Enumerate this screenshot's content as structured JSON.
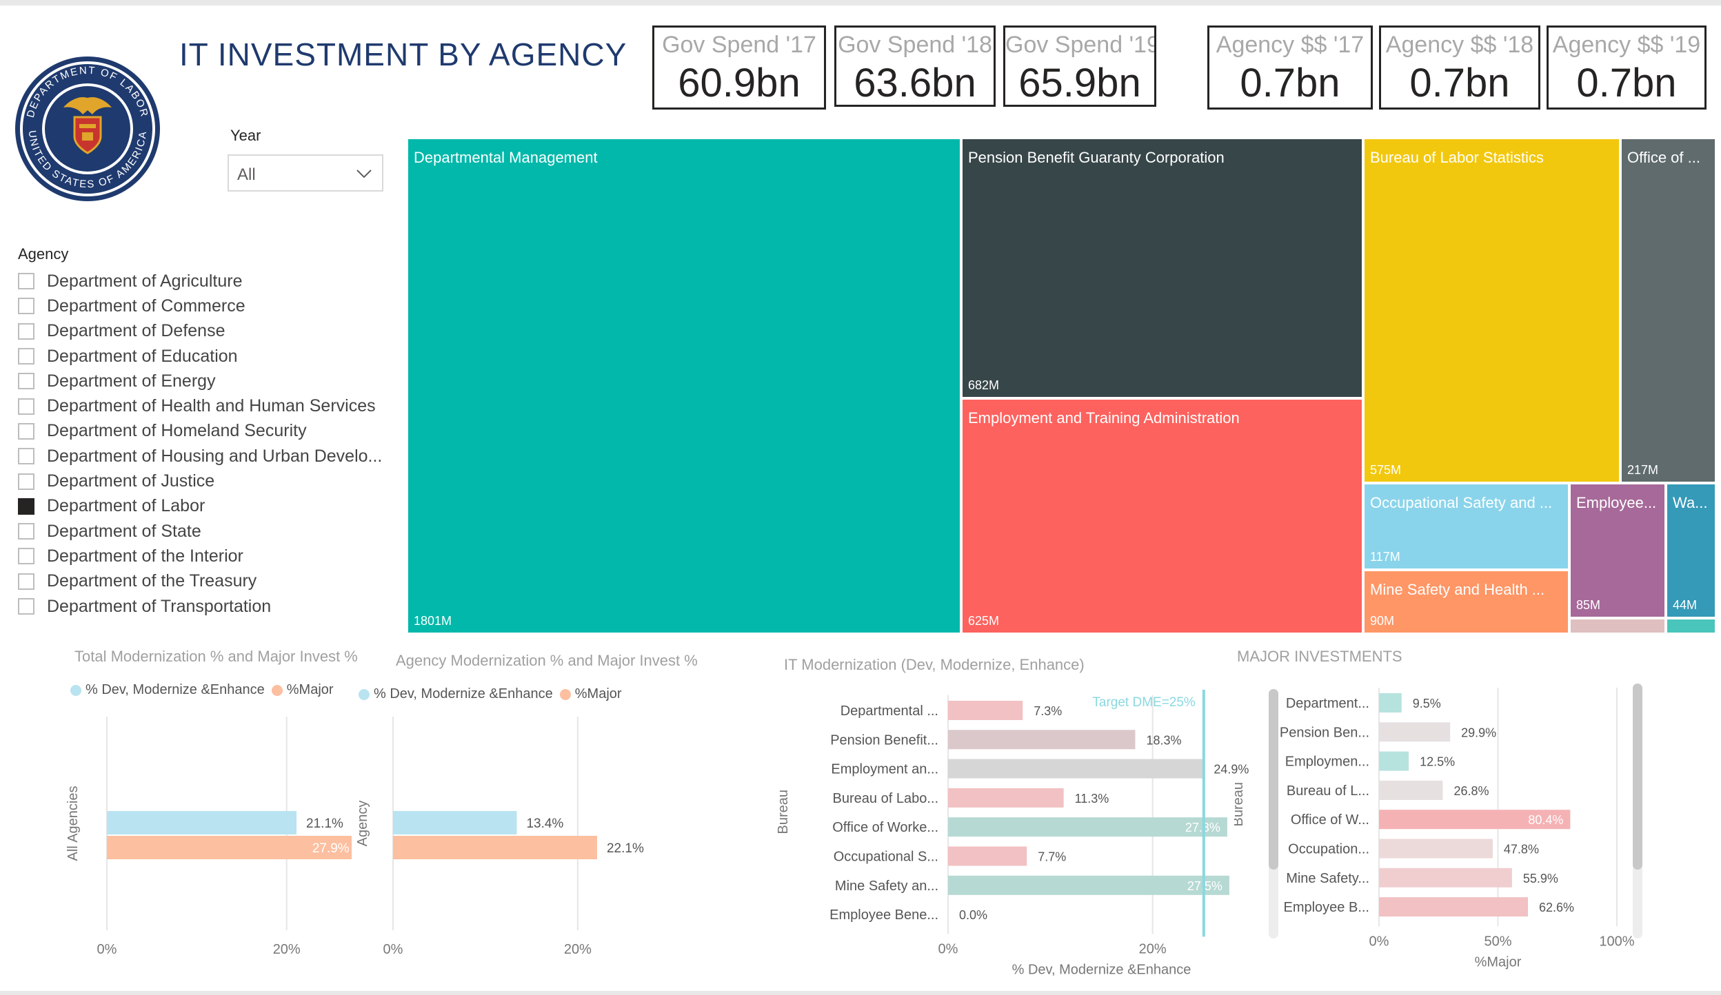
{
  "header": {
    "title": "IT INVESTMENT BY AGENCY"
  },
  "seal": {
    "top_text": "DEPARTMENT OF LABOR",
    "bottom_text": "UNITED STATES OF AMERICA",
    "colors": {
      "ring": "#1f3a6e",
      "gold": "#e0a52a",
      "shield": "#c8352f"
    }
  },
  "kpis": [
    {
      "label": "Gov Spend '17",
      "value": "60.9bn"
    },
    {
      "label": "Gov Spend '18",
      "value": "63.6bn"
    },
    {
      "label": "Gov Spend '19",
      "value": "65.9bn"
    },
    {
      "label": "Agency $$ '17",
      "value": "0.7bn"
    },
    {
      "label": "Agency $$ '18",
      "value": "0.7bn"
    },
    {
      "label": "Agency $$ '19",
      "value": "0.7bn"
    }
  ],
  "year_slicer": {
    "label": "Year",
    "value": "All",
    "icon": "chevron-down-icon"
  },
  "agency_slicer": {
    "label": "Agency",
    "items": [
      {
        "label": "Department of Agriculture",
        "checked": false
      },
      {
        "label": "Department of Commerce",
        "checked": false
      },
      {
        "label": "Department of Defense",
        "checked": false
      },
      {
        "label": "Department of Education",
        "checked": false
      },
      {
        "label": "Department of Energy",
        "checked": false
      },
      {
        "label": "Department of Health and Human Services",
        "checked": false
      },
      {
        "label": "Department of Homeland Security",
        "checked": false
      },
      {
        "label": "Department of Housing and Urban Develo...",
        "checked": false
      },
      {
        "label": "Department of Justice",
        "checked": false
      },
      {
        "label": "Department of Labor",
        "checked": true
      },
      {
        "label": "Department of State",
        "checked": false
      },
      {
        "label": "Department of the Interior",
        "checked": false
      },
      {
        "label": "Department of the Treasury",
        "checked": false
      },
      {
        "label": "Department of Transportation",
        "checked": false
      }
    ]
  },
  "treemap": {
    "tiles": [
      {
        "label": "Departmental Management",
        "value": "1801M",
        "color": "#01b8aa"
      },
      {
        "label": "Pension Benefit Guaranty Corporation",
        "value": "682M",
        "color": "#374649"
      },
      {
        "label": "Employment and Training Administration",
        "value": "625M",
        "color": "#fd625e"
      },
      {
        "label": "Bureau of Labor Statistics",
        "value": "575M",
        "color": "#f2c80f"
      },
      {
        "label": "Office of ...",
        "value": "217M",
        "color": "#5f6b6d"
      },
      {
        "label": "Occupational Safety and ...",
        "value": "117M",
        "color": "#8ad4eb"
      },
      {
        "label": "Mine Safety and Health ...",
        "value": "90M",
        "color": "#fe9666"
      },
      {
        "label": "Employee...",
        "value": "85M",
        "color": "#a66999"
      },
      {
        "label": "Wa...",
        "value": "44M",
        "color": "#3599b8"
      },
      {
        "label": "",
        "value": "",
        "color": "#dfbfbf"
      },
      {
        "label": "",
        "value": "",
        "color": "#4ac5bb"
      }
    ]
  },
  "chart_data": [
    {
      "type": "bar",
      "title": "Total Modernization % and Major Invest %",
      "ylabel": "All Agencies",
      "legend": [
        "% Dev, Modernize &Enhance",
        "%Major"
      ],
      "colors": [
        "#b9e3f0",
        "#fcbf9f"
      ],
      "categories": [
        "All Agencies"
      ],
      "series": [
        {
          "name": "% Dev, Modernize &Enhance",
          "values": [
            21.1
          ],
          "labels": [
            "21.1%"
          ]
        },
        {
          "name": "%Major",
          "values": [
            27.9
          ],
          "labels": [
            "27.9%"
          ]
        }
      ],
      "xticks": [
        "0%",
        "20%"
      ],
      "xlim": [
        0,
        28
      ]
    },
    {
      "type": "bar",
      "title": "Agency Modernization % and Major Invest %",
      "ylabel": "Agency",
      "legend": [
        "% Dev, Modernize &Enhance",
        "%Major"
      ],
      "colors": [
        "#b9e3f0",
        "#fcbf9f"
      ],
      "categories": [
        "Agency"
      ],
      "series": [
        {
          "name": "% Dev, Modernize &Enhance",
          "values": [
            13.4
          ],
          "labels": [
            "13.4%"
          ]
        },
        {
          "name": "%Major",
          "values": [
            22.1
          ],
          "labels": [
            "22.1%"
          ]
        }
      ],
      "xticks": [
        "0%",
        "20%"
      ],
      "xlim": [
        0,
        28
      ]
    },
    {
      "type": "bar",
      "title": "IT Modernization (Dev, Modernize, Enhance)",
      "xlabel": "% Dev, Modernize &Enhance",
      "ylabel": "Bureau",
      "categories": [
        "Departmental ...",
        "Pension Benefit...",
        "Employment an...",
        "Bureau of Labo...",
        "Office of Worke...",
        "Occupational S...",
        "Mine Safety an...",
        "Employee Bene..."
      ],
      "values": [
        7.3,
        18.3,
        24.9,
        11.3,
        27.3,
        7.7,
        27.5,
        0.0
      ],
      "labels": [
        "7.3%",
        "18.3%",
        "24.9%",
        "11.3%",
        "27.3%",
        "7.7%",
        "27.5%",
        "0.0%"
      ],
      "colors": [
        "#f2c1c3",
        "#dbc8ca",
        "#d6d6d6",
        "#f2c1c3",
        "#b7d9d3",
        "#f2c1c3",
        "#b7d9d3",
        "#f2c1c3"
      ],
      "target": {
        "label": "Target DME=25%",
        "value": 25,
        "color": "#8ad8e0"
      },
      "xticks": [
        "0%",
        "20%"
      ],
      "xlim": [
        0,
        30
      ]
    },
    {
      "type": "bar",
      "title": "MAJOR INVESTMENTS",
      "xlabel": "%Major",
      "ylabel": "Bureau",
      "categories": [
        "Department...",
        "Pension Ben...",
        "Employmen...",
        "Bureau of L...",
        "Office of W...",
        "Occupation...",
        "Mine Safety...",
        "Employee B..."
      ],
      "values": [
        9.5,
        29.9,
        12.5,
        26.8,
        80.4,
        47.8,
        55.9,
        62.6
      ],
      "labels": [
        "9.5%",
        "29.9%",
        "12.5%",
        "26.8%",
        "80.4%",
        "47.8%",
        "55.9%",
        "62.6%"
      ],
      "colors": [
        "#b7e3df",
        "#e6e0e0",
        "#b7e3df",
        "#e6e0e0",
        "#f5b2b5",
        "#ecd9d9",
        "#f0cdcf",
        "#f2c1c3"
      ],
      "xticks": [
        "0%",
        "50%",
        "100%"
      ],
      "xlim": [
        0,
        100
      ]
    }
  ]
}
